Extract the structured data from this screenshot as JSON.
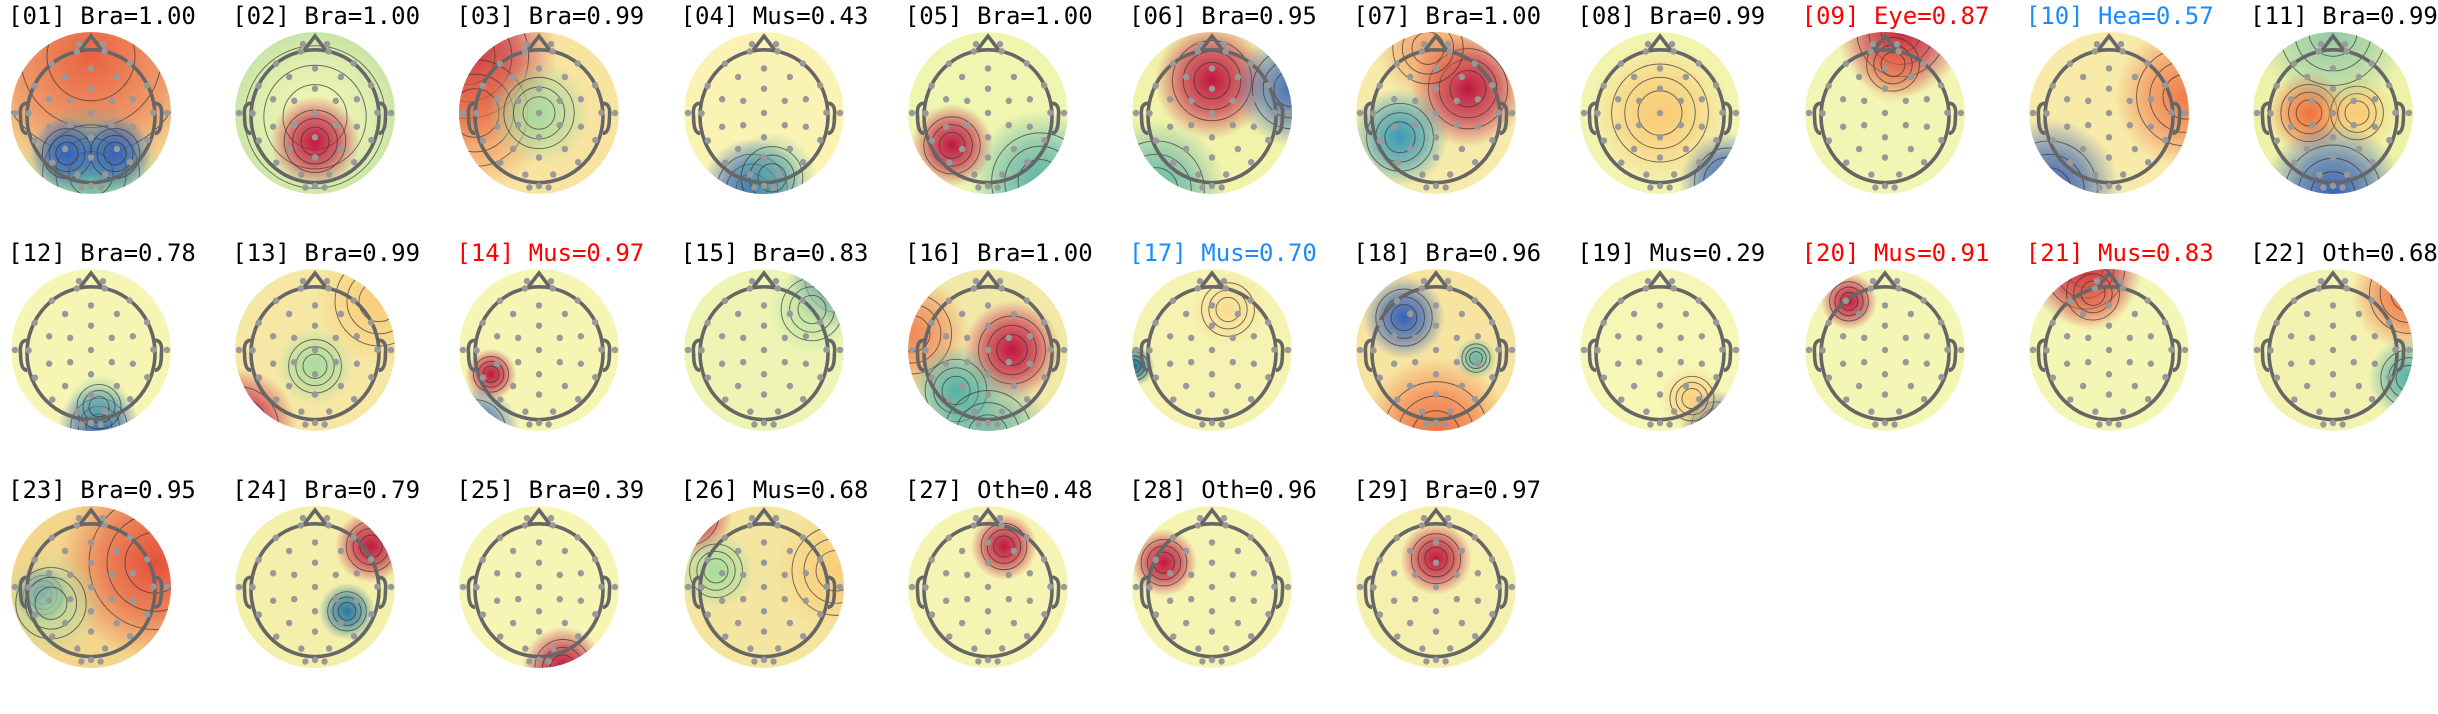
{
  "chart_data": {
    "type": "heatmap",
    "title": "",
    "colors": {
      "default": "#000000",
      "red": "#ff0000",
      "blue": "#1a8cff"
    },
    "components": [
      {
        "index": "01",
        "label": "Bra",
        "score": "1.00",
        "color": "default"
      },
      {
        "index": "02",
        "label": "Bra",
        "score": "1.00",
        "color": "default"
      },
      {
        "index": "03",
        "label": "Bra",
        "score": "0.99",
        "color": "default"
      },
      {
        "index": "04",
        "label": "Mus",
        "score": "0.43",
        "color": "default"
      },
      {
        "index": "05",
        "label": "Bra",
        "score": "1.00",
        "color": "default"
      },
      {
        "index": "06",
        "label": "Bra",
        "score": "0.95",
        "color": "default"
      },
      {
        "index": "07",
        "label": "Bra",
        "score": "1.00",
        "color": "default"
      },
      {
        "index": "08",
        "label": "Bra",
        "score": "0.99",
        "color": "default"
      },
      {
        "index": "09",
        "label": "Eye",
        "score": "0.87",
        "color": "red"
      },
      {
        "index": "10",
        "label": "Hea",
        "score": "0.57",
        "color": "blue"
      },
      {
        "index": "11",
        "label": "Bra",
        "score": "0.99",
        "color": "default"
      },
      {
        "index": "12",
        "label": "Bra",
        "score": "0.78",
        "color": "default"
      },
      {
        "index": "13",
        "label": "Bra",
        "score": "0.99",
        "color": "default"
      },
      {
        "index": "14",
        "label": "Mus",
        "score": "0.97",
        "color": "red"
      },
      {
        "index": "15",
        "label": "Bra",
        "score": "0.83",
        "color": "default"
      },
      {
        "index": "16",
        "label": "Bra",
        "score": "1.00",
        "color": "default"
      },
      {
        "index": "17",
        "label": "Mus",
        "score": "0.70",
        "color": "blue"
      },
      {
        "index": "18",
        "label": "Bra",
        "score": "0.96",
        "color": "default"
      },
      {
        "index": "19",
        "label": "Mus",
        "score": "0.29",
        "color": "default"
      },
      {
        "index": "20",
        "label": "Mus",
        "score": "0.91",
        "color": "red"
      },
      {
        "index": "21",
        "label": "Mus",
        "score": "0.83",
        "color": "red"
      },
      {
        "index": "22",
        "label": "Oth",
        "score": "0.68",
        "color": "default"
      },
      {
        "index": "23",
        "label": "Bra",
        "score": "0.95",
        "color": "default"
      },
      {
        "index": "24",
        "label": "Bra",
        "score": "0.79",
        "color": "default"
      },
      {
        "index": "25",
        "label": "Bra",
        "score": "0.39",
        "color": "default"
      },
      {
        "index": "26",
        "label": "Mus",
        "score": "0.68",
        "color": "default"
      },
      {
        "index": "27",
        "label": "Oth",
        "score": "0.48",
        "color": "default"
      },
      {
        "index": "28",
        "label": "Oth",
        "score": "0.96",
        "color": "default"
      },
      {
        "index": "29",
        "label": "Bra",
        "score": "0.97",
        "color": "default"
      }
    ]
  }
}
